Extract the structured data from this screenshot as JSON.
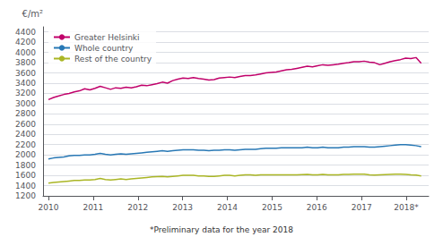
{
  "chart_data": {
    "type": "line",
    "ylabel": "€/m²",
    "footnote": "*Preliminary data for the year 2018",
    "x": [
      2010,
      2010.1157,
      2010.2315,
      2010.3472,
      2010.4629,
      2010.5787,
      2010.6944,
      2010.8102,
      2010.9259,
      2011.0416,
      2011.1574,
      2011.2731,
      2011.3888,
      2011.5046,
      2011.6203,
      2011.736,
      2011.8518,
      2011.9675,
      2012.0833,
      2012.199,
      2012.3147,
      2012.4305,
      2012.5462,
      2012.6619,
      2012.7777,
      2012.8934,
      2013.0091,
      2013.1249,
      2013.2406,
      2013.3563,
      2013.4721,
      2013.5878,
      2013.7036,
      2013.8193,
      2013.935,
      2014.0508,
      2014.1665,
      2014.2822,
      2014.398,
      2014.5137,
      2014.6294,
      2014.7452,
      2014.8609,
      2014.9767,
      2015.0924,
      2015.2081,
      2015.3239,
      2015.4396,
      2015.5553,
      2015.6711,
      2015.7868,
      2015.9025,
      2016.0183,
      2016.134,
      2016.2498,
      2016.3655,
      2016.4812,
      2016.597,
      2016.7127,
      2016.8284,
      2016.9442,
      2017.0599,
      2017.1756,
      2017.2914,
      2017.4071,
      2017.5228,
      2017.6386,
      2017.7543,
      2017.8701,
      2017.9858,
      2018.1015,
      2018.2173,
      2018.333
    ],
    "series": [
      {
        "name": "Greater Helsinki",
        "color": "#c0006a",
        "values": [
          3080,
          3120,
          3150,
          3180,
          3200,
          3230,
          3250,
          3290,
          3270,
          3300,
          3340,
          3310,
          3280,
          3310,
          3300,
          3320,
          3310,
          3330,
          3360,
          3350,
          3370,
          3390,
          3420,
          3400,
          3450,
          3480,
          3500,
          3490,
          3510,
          3490,
          3480,
          3460,
          3470,
          3500,
          3510,
          3520,
          3510,
          3530,
          3550,
          3550,
          3560,
          3580,
          3600,
          3610,
          3620,
          3640,
          3660,
          3670,
          3690,
          3710,
          3730,
          3720,
          3740,
          3760,
          3750,
          3760,
          3770,
          3790,
          3800,
          3820,
          3820,
          3830,
          3810,
          3800,
          3760,
          3790,
          3820,
          3840,
          3860,
          3890,
          3880,
          3900,
          3790
        ]
      },
      {
        "name": "Whole country",
        "color": "#2878b5",
        "values": [
          1920,
          1940,
          1950,
          1960,
          1980,
          1990,
          1990,
          2000,
          2000,
          2010,
          2030,
          2010,
          2000,
          2010,
          2020,
          2010,
          2020,
          2030,
          2040,
          2050,
          2060,
          2070,
          2080,
          2070,
          2080,
          2090,
          2100,
          2100,
          2100,
          2090,
          2090,
          2080,
          2090,
          2090,
          2100,
          2100,
          2090,
          2100,
          2110,
          2110,
          2110,
          2120,
          2130,
          2130,
          2130,
          2140,
          2140,
          2140,
          2140,
          2140,
          2150,
          2140,
          2140,
          2150,
          2140,
          2140,
          2140,
          2150,
          2150,
          2160,
          2160,
          2160,
          2150,
          2150,
          2160,
          2170,
          2180,
          2190,
          2200,
          2200,
          2190,
          2180,
          2160
        ]
      },
      {
        "name": "Rest of the country",
        "color": "#aab625",
        "values": [
          1450,
          1460,
          1470,
          1480,
          1490,
          1500,
          1500,
          1510,
          1510,
          1520,
          1540,
          1520,
          1510,
          1520,
          1530,
          1520,
          1530,
          1540,
          1550,
          1560,
          1570,
          1575,
          1580,
          1570,
          1580,
          1590,
          1600,
          1600,
          1600,
          1590,
          1590,
          1580,
          1580,
          1590,
          1600,
          1600,
          1590,
          1600,
          1610,
          1610,
          1600,
          1610,
          1610,
          1610,
          1610,
          1610,
          1610,
          1610,
          1610,
          1615,
          1620,
          1610,
          1610,
          1620,
          1610,
          1610,
          1610,
          1620,
          1620,
          1625,
          1625,
          1625,
          1610,
          1605,
          1610,
          1615,
          1620,
          1625,
          1625,
          1620,
          1610,
          1605,
          1590
        ]
      }
    ],
    "xlim": [
      2009.88,
      2018.5
    ],
    "xticks": [
      2010,
      2011,
      2012,
      2013,
      2014,
      2015,
      2016,
      2017,
      {
        "value": 2018,
        "label": "2018*"
      }
    ],
    "ylim": [
      1200,
      4500
    ],
    "yticks": [
      1200,
      1400,
      1600,
      1800,
      2000,
      2200,
      2400,
      2600,
      2800,
      3000,
      3200,
      3400,
      3600,
      3800,
      4000,
      4200,
      4400
    ],
    "grid": true,
    "legend": "upper left"
  }
}
